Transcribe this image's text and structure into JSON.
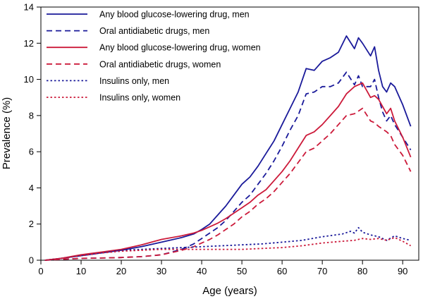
{
  "chart_data": {
    "type": "line",
    "title": "",
    "xlabel": "Age (years)",
    "ylabel": "Prevalence (%)",
    "xlim": [
      0,
      94
    ],
    "ylim": [
      0,
      14
    ],
    "xticks": [
      0,
      10,
      20,
      30,
      40,
      50,
      60,
      70,
      80,
      90
    ],
    "yticks": [
      0,
      2,
      4,
      6,
      8,
      10,
      12,
      14
    ],
    "grid": false,
    "legend_position": "top-left",
    "series": [
      {
        "name": "Any blood glucose-lowering drug, men",
        "color": "#1a1a9a",
        "dash": "solid",
        "points": [
          [
            1,
            0
          ],
          [
            5,
            0.1
          ],
          [
            10,
            0.25
          ],
          [
            15,
            0.4
          ],
          [
            20,
            0.55
          ],
          [
            25,
            0.75
          ],
          [
            30,
            1.0
          ],
          [
            35,
            1.25
          ],
          [
            38,
            1.45
          ],
          [
            40,
            1.7
          ],
          [
            42,
            2.0
          ],
          [
            44,
            2.5
          ],
          [
            46,
            3.0
          ],
          [
            48,
            3.6
          ],
          [
            50,
            4.2
          ],
          [
            52,
            4.6
          ],
          [
            54,
            5.2
          ],
          [
            56,
            5.9
          ],
          [
            58,
            6.6
          ],
          [
            60,
            7.5
          ],
          [
            62,
            8.4
          ],
          [
            64,
            9.3
          ],
          [
            66,
            10.6
          ],
          [
            68,
            10.5
          ],
          [
            70,
            11.0
          ],
          [
            72,
            11.2
          ],
          [
            74,
            11.5
          ],
          [
            76,
            12.4
          ],
          [
            78,
            11.7
          ],
          [
            79,
            12.3
          ],
          [
            80,
            12.0
          ],
          [
            82,
            11.3
          ],
          [
            83,
            11.8
          ],
          [
            84,
            10.5
          ],
          [
            85,
            9.6
          ],
          [
            86,
            9.3
          ],
          [
            87,
            9.8
          ],
          [
            88,
            9.6
          ],
          [
            90,
            8.6
          ],
          [
            92,
            7.4
          ]
        ]
      },
      {
        "name": "Oral antidiabetic drugs, men",
        "color": "#1a1a9a",
        "dash": "long",
        "points": [
          [
            1,
            0
          ],
          [
            5,
            0.05
          ],
          [
            10,
            0.1
          ],
          [
            15,
            0.12
          ],
          [
            20,
            0.15
          ],
          [
            25,
            0.2
          ],
          [
            30,
            0.3
          ],
          [
            35,
            0.6
          ],
          [
            38,
            0.9
          ],
          [
            40,
            1.2
          ],
          [
            42,
            1.5
          ],
          [
            44,
            1.8
          ],
          [
            46,
            2.2
          ],
          [
            48,
            2.7
          ],
          [
            50,
            3.2
          ],
          [
            52,
            3.6
          ],
          [
            54,
            4.2
          ],
          [
            56,
            4.8
          ],
          [
            58,
            5.5
          ],
          [
            60,
            6.3
          ],
          [
            62,
            7.2
          ],
          [
            64,
            8.0
          ],
          [
            66,
            9.2
          ],
          [
            68,
            9.3
          ],
          [
            70,
            9.6
          ],
          [
            72,
            9.6
          ],
          [
            74,
            9.8
          ],
          [
            76,
            10.4
          ],
          [
            78,
            9.7
          ],
          [
            79,
            10.2
          ],
          [
            80,
            9.6
          ],
          [
            82,
            9.6
          ],
          [
            83,
            10.0
          ],
          [
            84,
            9.0
          ],
          [
            85,
            8.2
          ],
          [
            86,
            7.7
          ],
          [
            87,
            8.0
          ],
          [
            88,
            7.5
          ],
          [
            90,
            6.8
          ],
          [
            92,
            6.1
          ]
        ]
      },
      {
        "name": "Any blood glucose-lowering drug, women",
        "color": "#cc1a3a",
        "dash": "solid",
        "points": [
          [
            1,
            0
          ],
          [
            5,
            0.1
          ],
          [
            10,
            0.3
          ],
          [
            15,
            0.45
          ],
          [
            20,
            0.6
          ],
          [
            25,
            0.85
          ],
          [
            30,
            1.15
          ],
          [
            35,
            1.35
          ],
          [
            38,
            1.5
          ],
          [
            40,
            1.65
          ],
          [
            42,
            1.85
          ],
          [
            44,
            2.05
          ],
          [
            46,
            2.3
          ],
          [
            48,
            2.6
          ],
          [
            50,
            2.9
          ],
          [
            52,
            3.2
          ],
          [
            54,
            3.6
          ],
          [
            56,
            3.9
          ],
          [
            58,
            4.4
          ],
          [
            60,
            4.9
          ],
          [
            62,
            5.5
          ],
          [
            64,
            6.2
          ],
          [
            66,
            6.9
          ],
          [
            68,
            7.1
          ],
          [
            70,
            7.5
          ],
          [
            72,
            8.0
          ],
          [
            74,
            8.5
          ],
          [
            76,
            9.2
          ],
          [
            78,
            9.6
          ],
          [
            80,
            9.8
          ],
          [
            82,
            9.0
          ],
          [
            83,
            9.1
          ],
          [
            84,
            8.9
          ],
          [
            86,
            8.1
          ],
          [
            87,
            8.4
          ],
          [
            88,
            7.7
          ],
          [
            90,
            6.8
          ],
          [
            92,
            5.7
          ]
        ]
      },
      {
        "name": "Oral antidiabetic drugs, women",
        "color": "#cc1a3a",
        "dash": "long",
        "points": [
          [
            1,
            0
          ],
          [
            5,
            0.05
          ],
          [
            10,
            0.1
          ],
          [
            15,
            0.12
          ],
          [
            20,
            0.15
          ],
          [
            25,
            0.2
          ],
          [
            30,
            0.3
          ],
          [
            35,
            0.55
          ],
          [
            38,
            0.75
          ],
          [
            40,
            0.95
          ],
          [
            42,
            1.15
          ],
          [
            44,
            1.4
          ],
          [
            46,
            1.7
          ],
          [
            48,
            2.0
          ],
          [
            50,
            2.4
          ],
          [
            52,
            2.7
          ],
          [
            54,
            3.1
          ],
          [
            56,
            3.4
          ],
          [
            58,
            3.8
          ],
          [
            60,
            4.3
          ],
          [
            62,
            4.8
          ],
          [
            64,
            5.4
          ],
          [
            66,
            6.0
          ],
          [
            68,
            6.2
          ],
          [
            70,
            6.6
          ],
          [
            72,
            7.0
          ],
          [
            74,
            7.5
          ],
          [
            76,
            8.0
          ],
          [
            78,
            8.1
          ],
          [
            80,
            8.4
          ],
          [
            82,
            7.7
          ],
          [
            83,
            7.6
          ],
          [
            84,
            7.4
          ],
          [
            86,
            7.1
          ],
          [
            87,
            6.9
          ],
          [
            88,
            6.4
          ],
          [
            90,
            5.8
          ],
          [
            92,
            4.9
          ]
        ]
      },
      {
        "name": "Insulins only, men",
        "color": "#1a1a9a",
        "dash": "short",
        "points": [
          [
            1,
            0
          ],
          [
            5,
            0.1
          ],
          [
            10,
            0.25
          ],
          [
            15,
            0.4
          ],
          [
            20,
            0.55
          ],
          [
            25,
            0.6
          ],
          [
            30,
            0.65
          ],
          [
            35,
            0.7
          ],
          [
            40,
            0.75
          ],
          [
            45,
            0.8
          ],
          [
            50,
            0.85
          ],
          [
            55,
            0.9
          ],
          [
            60,
            1.0
          ],
          [
            65,
            1.1
          ],
          [
            70,
            1.3
          ],
          [
            75,
            1.45
          ],
          [
            77,
            1.6
          ],
          [
            78,
            1.5
          ],
          [
            79,
            1.8
          ],
          [
            80,
            1.55
          ],
          [
            82,
            1.4
          ],
          [
            84,
            1.3
          ],
          [
            86,
            1.1
          ],
          [
            88,
            1.35
          ],
          [
            90,
            1.2
          ],
          [
            92,
            1.1
          ]
        ]
      },
      {
        "name": "Insulins only, women",
        "color": "#cc1a3a",
        "dash": "short",
        "points": [
          [
            1,
            0
          ],
          [
            5,
            0.1
          ],
          [
            10,
            0.25
          ],
          [
            15,
            0.4
          ],
          [
            20,
            0.5
          ],
          [
            25,
            0.55
          ],
          [
            30,
            0.6
          ],
          [
            35,
            0.6
          ],
          [
            40,
            0.6
          ],
          [
            45,
            0.6
          ],
          [
            50,
            0.6
          ],
          [
            55,
            0.65
          ],
          [
            60,
            0.7
          ],
          [
            65,
            0.8
          ],
          [
            70,
            0.95
          ],
          [
            75,
            1.05
          ],
          [
            78,
            1.1
          ],
          [
            80,
            1.2
          ],
          [
            82,
            1.15
          ],
          [
            84,
            1.2
          ],
          [
            86,
            1.1
          ],
          [
            88,
            1.25
          ],
          [
            90,
            1.05
          ],
          [
            92,
            0.8
          ]
        ]
      }
    ]
  }
}
